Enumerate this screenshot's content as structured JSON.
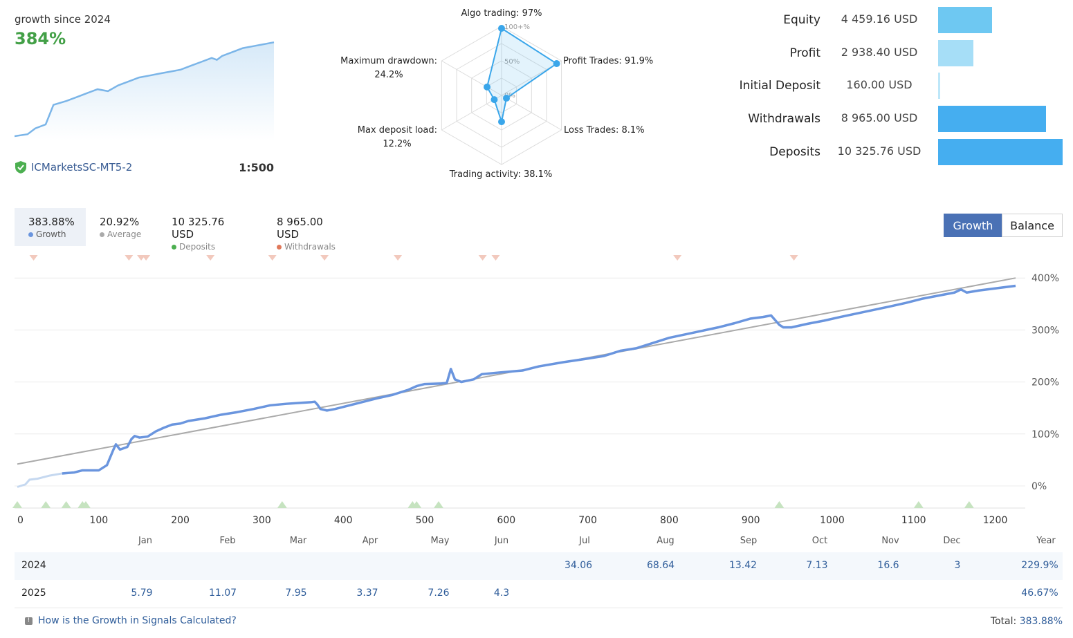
{
  "summary": {
    "growth_since_label": "growth since 2024",
    "growth_value": "384%",
    "broker": "ICMarketsSC-MT5-2",
    "leverage": "1:500",
    "shield_icon": "shield-check-icon",
    "spark": [
      [
        0,
        0
      ],
      [
        5,
        0.5
      ],
      [
        8,
        2
      ],
      [
        12,
        3
      ],
      [
        15,
        8
      ],
      [
        20,
        9
      ],
      [
        24,
        10
      ],
      [
        28,
        11
      ],
      [
        32,
        12
      ],
      [
        36,
        11.5
      ],
      [
        40,
        13
      ],
      [
        44,
        14
      ],
      [
        48,
        15
      ],
      [
        52,
        15.5
      ],
      [
        56,
        16
      ],
      [
        60,
        16.5
      ],
      [
        64,
        17
      ],
      [
        68,
        18
      ],
      [
        72,
        19
      ],
      [
        76,
        20
      ],
      [
        78,
        19.5
      ],
      [
        80,
        20.5
      ],
      [
        84,
        21.5
      ],
      [
        88,
        22.5
      ],
      [
        92,
        23
      ],
      [
        96,
        23.5
      ],
      [
        100,
        24
      ]
    ]
  },
  "radar": {
    "ring_labels": [
      "100+%",
      "50%",
      "0%"
    ],
    "axes": [
      {
        "label": "Algo trading: 97%",
        "value": 97
      },
      {
        "label": "Profit Trades: 91.9%",
        "value": 91.9
      },
      {
        "label": "Loss Trades: 8.1%",
        "value": 8.1
      },
      {
        "label": "Trading activity: 38.1%",
        "value": 38.1
      },
      {
        "label": "Max deposit load:",
        "value2": "12.2%",
        "value": 12.2
      },
      {
        "label": "Maximum drawdown:",
        "value2": "24.2%",
        "value": 24.2
      }
    ]
  },
  "stats": [
    {
      "label": "Equity",
      "value": "4 459.16 USD",
      "amount": 4459.16,
      "color": "#6ec8f2"
    },
    {
      "label": "Profit",
      "value": "2 938.40 USD",
      "amount": 2938.4,
      "color": "#a6def7"
    },
    {
      "label": "Initial Deposit",
      "value": "160.00 USD",
      "amount": 160.0,
      "color": "#bde7f9"
    },
    {
      "label": "Withdrawals",
      "value": "8 965.00 USD",
      "amount": 8965.0,
      "color": "#45aef0"
    },
    {
      "label": "Deposits",
      "value": "10 325.76 USD",
      "amount": 10325.76,
      "color": "#45aef0"
    }
  ],
  "tabs": [
    {
      "value": "383.88%",
      "label": "Growth",
      "color": "#6a95de"
    },
    {
      "value": "20.92%",
      "label": "Average",
      "color": "#aaaaaa"
    },
    {
      "value": "10 325.76 USD",
      "label": "Deposits",
      "color": "#4caf50"
    },
    {
      "value": "8 965.00 USD",
      "label": "Withdrawals",
      "color": "#e0785a"
    }
  ],
  "buttons": {
    "growth": "Growth",
    "balance": "Balance"
  },
  "chart_data": {
    "type": "line",
    "x_range": [
      0,
      1225
    ],
    "y_range": [
      -40,
      420
    ],
    "y_ticks": [
      0,
      100,
      200,
      300,
      400
    ],
    "y_tick_labels": [
      "0%",
      "100%",
      "200%",
      "300%",
      "400%"
    ],
    "x_ticks": [
      0,
      100,
      200,
      300,
      400,
      500,
      600,
      700,
      800,
      900,
      1000,
      1100,
      1200
    ],
    "series": [
      {
        "color": "#6a95de",
        "points": [
          [
            0,
            -2
          ],
          [
            10,
            3
          ],
          [
            15,
            12
          ],
          [
            25,
            14
          ],
          [
            40,
            20
          ],
          [
            55,
            24
          ],
          [
            70,
            26
          ],
          [
            80,
            30
          ],
          [
            100,
            30
          ],
          [
            110,
            40
          ],
          [
            118,
            70
          ],
          [
            121,
            80
          ],
          [
            126,
            70
          ],
          [
            135,
            75
          ],
          [
            140,
            90
          ],
          [
            144,
            96
          ],
          [
            150,
            93
          ],
          [
            160,
            95
          ],
          [
            170,
            105
          ],
          [
            180,
            112
          ],
          [
            190,
            118
          ],
          [
            200,
            120
          ],
          [
            210,
            125
          ],
          [
            230,
            130
          ],
          [
            250,
            137
          ],
          [
            270,
            142
          ],
          [
            290,
            148
          ],
          [
            310,
            155
          ],
          [
            330,
            158
          ],
          [
            350,
            160
          ],
          [
            360,
            161
          ],
          [
            365,
            162
          ],
          [
            368,
            157
          ],
          [
            372,
            148
          ],
          [
            380,
            145
          ],
          [
            390,
            148
          ],
          [
            400,
            152
          ],
          [
            420,
            160
          ],
          [
            440,
            168
          ],
          [
            460,
            175
          ],
          [
            480,
            185
          ],
          [
            490,
            192
          ],
          [
            500,
            196
          ],
          [
            520,
            197
          ],
          [
            527,
            198
          ],
          [
            532,
            225
          ],
          [
            537,
            205
          ],
          [
            545,
            200
          ],
          [
            560,
            205
          ],
          [
            570,
            215
          ],
          [
            590,
            218
          ],
          [
            620,
            222
          ],
          [
            640,
            230
          ],
          [
            670,
            238
          ],
          [
            700,
            245
          ],
          [
            720,
            250
          ],
          [
            740,
            260
          ],
          [
            760,
            265
          ],
          [
            780,
            275
          ],
          [
            800,
            285
          ],
          [
            830,
            295
          ],
          [
            860,
            305
          ],
          [
            880,
            313
          ],
          [
            900,
            322
          ],
          [
            915,
            325
          ],
          [
            925,
            328
          ],
          [
            935,
            310
          ],
          [
            940,
            305
          ],
          [
            950,
            305
          ],
          [
            970,
            312
          ],
          [
            990,
            318
          ],
          [
            1010,
            325
          ],
          [
            1040,
            335
          ],
          [
            1070,
            345
          ],
          [
            1090,
            352
          ],
          [
            1100,
            356
          ],
          [
            1110,
            360
          ],
          [
            1130,
            366
          ],
          [
            1150,
            372
          ],
          [
            1158,
            378
          ],
          [
            1165,
            372
          ],
          [
            1180,
            376
          ],
          [
            1200,
            380
          ],
          [
            1225,
            385
          ]
        ]
      },
      {
        "color": "#aaaaaa",
        "points": [
          [
            0,
            42
          ],
          [
            1225,
            400
          ]
        ]
      }
    ]
  },
  "month_labels": [
    "Jan",
    "Feb",
    "Mar",
    "Apr",
    "May",
    "Jun",
    "Jul",
    "Aug",
    "Sep",
    "Oct",
    "Nov",
    "Dec",
    "Year"
  ],
  "deposit_markers": [
    0,
    35,
    60,
    80,
    84,
    325,
    485,
    490,
    517,
    935,
    1106,
    1168
  ],
  "withdrawal_markers": [
    20,
    137,
    152,
    158,
    237,
    313,
    377,
    467,
    571,
    587,
    810,
    953
  ],
  "table": [
    {
      "year": "2024",
      "values": [
        "",
        "",
        "",
        "",
        "",
        "",
        "34.06",
        "68.64",
        "13.42",
        "7.13",
        "16.6",
        "3",
        "229.9%"
      ]
    },
    {
      "year": "2025",
      "values": [
        "5.79",
        "11.07",
        "7.95",
        "3.37",
        "7.26",
        "4.3",
        "",
        "",
        "",
        "",
        "",
        "",
        "46.67%"
      ]
    }
  ],
  "footer": {
    "link": "How is the Growth in Signals Calculated?",
    "total_label": "Total:",
    "total_value": "383.88%",
    "info_icon": "info-icon"
  }
}
